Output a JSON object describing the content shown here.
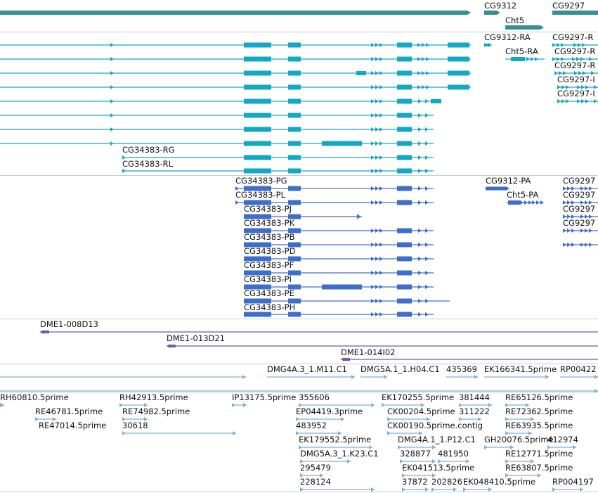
{
  "colors": {
    "gene": "#358f95",
    "mrna": "#13a9c4",
    "protein": "#3d6ec9",
    "clone": "#7b55a6",
    "est": "#7fb1d6",
    "separator": "#c9ccce",
    "text": "#111111"
  },
  "gene_labels": [
    "CG9312",
    "CG9297",
    "Cht5"
  ],
  "mrna_labels": [
    "CG9312-RA",
    "CG9297-R",
    "Cht5-RA",
    "CG9297-R",
    "CG9297-R",
    "CG9297-I",
    "CG9297-I",
    "CG34383-RG",
    "CG34383-RL"
  ],
  "protein_labels": [
    "CG34383-PG",
    "CG9312-PA",
    "CG9297",
    "CG34383-PL",
    "Cht5-PA",
    "CG9297",
    "CG34383-PJ",
    "CG9297",
    "CG34383-PK",
    "CG9297",
    "CG34383-PB",
    "CG34383-PD",
    "CG34383-PF",
    "CG34383-PI",
    "CG34383-PE",
    "CG34383-PH"
  ],
  "clone_labels": [
    "DME1-008D13",
    "DME1-013D21",
    "DME1-014I02"
  ],
  "est_labels": [
    "DMG4A.3_1.M11.C1",
    "DMG5A.1_1.H04.C1",
    "435369",
    "EK166341.5prime",
    "RP00422",
    "RH60810.5prime",
    "RH42913.5prime",
    "IP13175.5prime",
    "355606",
    "EK170255.5prime",
    "381444",
    "RE65126.5prime",
    "RE46781.5prime",
    "RE74982.5prime",
    "EP04419.3prime",
    "CK00204.5prime",
    "311222",
    "RE72362.5prime",
    "RE47014.5prime",
    "30618",
    "483952",
    "CK00190.5prime.contig",
    "RE63935.5prime",
    "EK179552.5prime",
    "DMG4A.1_1.P12.C1",
    "GH20076.5prime",
    "412974",
    "DMG5A.3_1.K23.C1",
    "328877",
    "481950",
    "RE12771.5prime",
    "295479",
    "EK041513.5prime",
    "RE63807.5prime",
    "228124",
    "37872",
    "202826",
    "EK048410.5prime",
    "RP004197"
  ]
}
